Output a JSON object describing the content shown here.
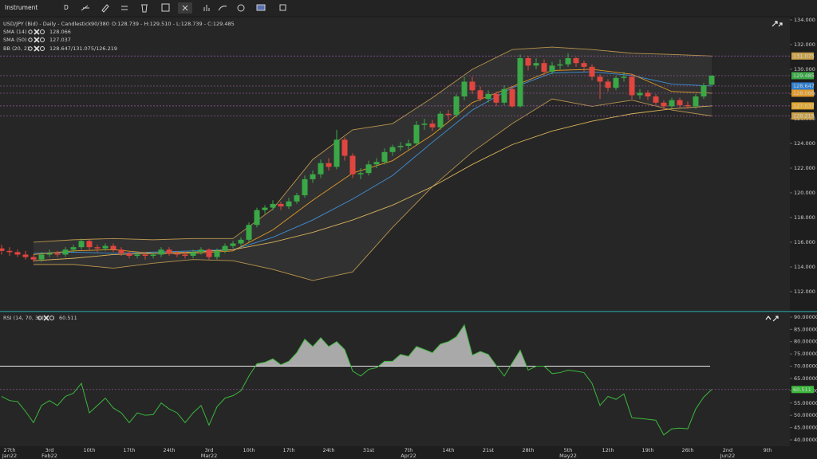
{
  "toolbar": {
    "instrument": "Instrument",
    "period": "D"
  },
  "chart_data": {
    "type": "candlestick",
    "title": "USD/JPY (Bid) - Daily - Candlestick",
    "counter": "90/380",
    "ohlc_text": "O:128.739 - H:129.510 - L:128.739 - C:129.485",
    "up_color": "#3aa846",
    "down_color": "#e0463e",
    "candles": [
      [
        115.5,
        115.8,
        115.0,
        115.3
      ],
      [
        115.3,
        115.6,
        114.9,
        115.2
      ],
      [
        115.2,
        115.4,
        114.8,
        115.0
      ],
      [
        115.0,
        115.3,
        114.6,
        114.8
      ],
      [
        114.8,
        115.0,
        114.4,
        114.6
      ],
      [
        114.6,
        115.2,
        114.4,
        115.0
      ],
      [
        115.0,
        115.4,
        114.8,
        115.1
      ],
      [
        115.1,
        115.3,
        114.8,
        115.0
      ],
      [
        115.0,
        115.6,
        114.8,
        115.4
      ],
      [
        115.4,
        115.8,
        115.2,
        115.6
      ],
      [
        115.6,
        116.3,
        115.4,
        116.1
      ],
      [
        116.1,
        116.2,
        115.4,
        115.6
      ],
      [
        115.6,
        115.8,
        115.2,
        115.5
      ],
      [
        115.5,
        115.9,
        115.3,
        115.7
      ],
      [
        115.7,
        115.9,
        115.2,
        115.4
      ],
      [
        115.4,
        115.6,
        114.9,
        115.1
      ],
      [
        115.1,
        115.3,
        114.7,
        114.9
      ],
      [
        114.9,
        115.2,
        114.7,
        115.0
      ],
      [
        115.0,
        115.2,
        114.6,
        114.9
      ],
      [
        114.9,
        115.2,
        114.7,
        115.0
      ],
      [
        115.0,
        115.6,
        114.8,
        115.4
      ],
      [
        115.4,
        115.6,
        114.9,
        115.1
      ],
      [
        115.1,
        115.3,
        114.8,
        115.0
      ],
      [
        115.0,
        115.2,
        114.7,
        114.9
      ],
      [
        114.9,
        115.4,
        114.7,
        115.2
      ],
      [
        115.2,
        115.6,
        115.0,
        115.4
      ],
      [
        115.4,
        115.5,
        114.6,
        114.8
      ],
      [
        114.8,
        115.5,
        114.6,
        115.3
      ],
      [
        115.3,
        115.9,
        115.1,
        115.7
      ],
      [
        115.7,
        116.1,
        115.5,
        115.9
      ],
      [
        115.9,
        116.4,
        115.7,
        116.2
      ],
      [
        116.2,
        117.6,
        116.0,
        117.4
      ],
      [
        117.4,
        118.8,
        117.2,
        118.6
      ],
      [
        118.6,
        119.0,
        118.3,
        118.8
      ],
      [
        118.8,
        119.4,
        118.6,
        119.1
      ],
      [
        119.1,
        119.3,
        118.6,
        118.9
      ],
      [
        118.9,
        119.6,
        118.7,
        119.3
      ],
      [
        119.3,
        120.0,
        119.1,
        119.8
      ],
      [
        119.8,
        121.4,
        119.6,
        121.1
      ],
      [
        121.1,
        121.8,
        120.8,
        121.5
      ],
      [
        121.5,
        122.7,
        121.2,
        122.4
      ],
      [
        122.4,
        122.8,
        121.8,
        122.1
      ],
      [
        122.1,
        125.1,
        121.9,
        124.3
      ],
      [
        124.3,
        124.5,
        122.6,
        123.0
      ],
      [
        123.0,
        123.2,
        121.2,
        121.5
      ],
      [
        121.5,
        122.0,
        121.1,
        121.6
      ],
      [
        121.6,
        122.6,
        121.4,
        122.3
      ],
      [
        122.3,
        122.8,
        122.0,
        122.5
      ],
      [
        122.5,
        123.6,
        122.3,
        123.3
      ],
      [
        123.3,
        123.9,
        123.0,
        123.7
      ],
      [
        123.7,
        124.1,
        123.4,
        123.8
      ],
      [
        123.8,
        124.3,
        123.5,
        124.0
      ],
      [
        124.0,
        125.8,
        123.8,
        125.5
      ],
      [
        125.5,
        126.0,
        125.1,
        125.6
      ],
      [
        125.6,
        125.9,
        125.0,
        125.3
      ],
      [
        125.3,
        126.6,
        125.1,
        126.4
      ],
      [
        126.4,
        126.7,
        125.9,
        126.3
      ],
      [
        126.3,
        128.0,
        126.1,
        127.8
      ],
      [
        127.8,
        129.4,
        127.5,
        129.0
      ],
      [
        129.0,
        129.4,
        128.0,
        128.3
      ],
      [
        128.3,
        128.6,
        127.4,
        127.6
      ],
      [
        127.6,
        128.3,
        127.3,
        128.0
      ],
      [
        128.0,
        128.2,
        127.0,
        127.3
      ],
      [
        127.3,
        128.7,
        127.1,
        128.4
      ],
      [
        128.4,
        128.6,
        126.9,
        127.0
      ],
      [
        127.0,
        131.2,
        126.9,
        130.9
      ],
      [
        130.9,
        131.1,
        129.9,
        130.3
      ],
      [
        130.3,
        130.9,
        130.0,
        130.5
      ],
      [
        130.5,
        130.8,
        129.5,
        129.8
      ],
      [
        129.8,
        130.6,
        129.6,
        130.3
      ],
      [
        130.3,
        130.8,
        130.0,
        130.4
      ],
      [
        130.4,
        131.3,
        130.2,
        130.9
      ],
      [
        130.9,
        131.0,
        130.2,
        130.5
      ],
      [
        130.5,
        130.7,
        129.8,
        130.2
      ],
      [
        130.2,
        130.4,
        129.1,
        129.4
      ],
      [
        129.4,
        129.6,
        127.6,
        129.0
      ],
      [
        129.0,
        129.2,
        128.2,
        128.5
      ],
      [
        128.5,
        129.5,
        128.3,
        129.3
      ],
      [
        129.3,
        129.8,
        129.0,
        129.4
      ],
      [
        129.4,
        129.6,
        127.6,
        127.9
      ],
      [
        127.9,
        128.4,
        127.6,
        128.1
      ],
      [
        128.1,
        128.3,
        127.5,
        127.8
      ],
      [
        127.8,
        128.0,
        127.0,
        127.3
      ],
      [
        127.3,
        127.5,
        126.7,
        127.0
      ],
      [
        127.0,
        127.7,
        126.8,
        127.5
      ],
      [
        127.5,
        127.7,
        126.9,
        127.1
      ],
      [
        127.1,
        127.4,
        126.8,
        127.0
      ],
      [
        127.0,
        128.0,
        126.8,
        127.8
      ],
      [
        127.8,
        128.9,
        127.6,
        128.7
      ],
      [
        128.739,
        129.51,
        128.739,
        129.485
      ]
    ],
    "ylim": [
      110.45,
      134.19
    ],
    "yticks": [
      {
        "value": 112,
        "label": "112.000"
      },
      {
        "value": 114,
        "label": "114.000"
      },
      {
        "value": 116,
        "label": "116.000"
      },
      {
        "value": 118,
        "label": "118.000"
      },
      {
        "value": 120,
        "label": "120.000"
      },
      {
        "value": 122,
        "label": "122.000"
      },
      {
        "value": 124,
        "label": "124.000"
      },
      {
        "value": 126,
        "label": "126.000"
      },
      {
        "value": 128,
        "label": "128.000"
      },
      {
        "value": 130,
        "label": "130.000"
      },
      {
        "value": 132,
        "label": "132.000"
      },
      {
        "value": 134,
        "label": "134.000"
      }
    ],
    "indicators": [
      {
        "label": "SMA (14)",
        "value_text": "128.066",
        "color": "#e09a2a",
        "values": [
          115.0,
          115.3,
          115.4,
          115.1,
          115.1,
          115.3,
          117.0,
          119.4,
          121.6,
          122.6,
          124.7,
          127.3,
          128.6,
          129.9,
          130.0,
          129.6,
          128.2,
          128.066
        ]
      },
      {
        "label": "SMA (50)",
        "value_text": "127.037",
        "color": "#d8b25a",
        "values": [
          114.5,
          114.7,
          115.0,
          115.1,
          115.2,
          115.4,
          116.0,
          116.8,
          117.8,
          119.0,
          120.5,
          122.3,
          123.9,
          125.0,
          125.8,
          126.4,
          126.8,
          127.037
        ]
      },
      {
        "label": "BB (20, 2)",
        "value_text": "128.647/131.075/126.219",
        "color": "#b8944e",
        "middle_color": "#3f8fd8",
        "middle": [
          115.1,
          115.2,
          115.1,
          115.2,
          115.3,
          115.4,
          116.4,
          117.8,
          119.5,
          121.4,
          124.1,
          126.7,
          128.5,
          129.7,
          129.8,
          129.5,
          128.8,
          128.647
        ],
        "upper": [
          116.0,
          116.2,
          116.3,
          116.2,
          116.3,
          116.3,
          118.7,
          122.7,
          125.1,
          125.6,
          127.7,
          130.0,
          131.6,
          131.8,
          131.6,
          131.3,
          131.2,
          131.075
        ],
        "lower": [
          114.2,
          114.2,
          113.9,
          114.3,
          114.6,
          114.5,
          113.8,
          112.9,
          113.6,
          117.2,
          120.5,
          123.3,
          125.6,
          127.6,
          127.0,
          127.5,
          126.7,
          126.219
        ]
      }
    ],
    "price_tags": [
      {
        "value": 131.075,
        "color": "#c9a04a"
      },
      {
        "value": 129.485,
        "color": "#3aa846"
      },
      {
        "value": 128.647,
        "color": "#2f7fd0"
      },
      {
        "value": 128.066,
        "color": "#e09a2a"
      },
      {
        "value": 127.037,
        "color": "#e0a630"
      },
      {
        "value": 126.219,
        "color": "#c9a04a"
      }
    ],
    "dates": [
      {
        "day": "27th",
        "month": "Jan22"
      },
      {
        "day": "3rd",
        "month": "Feb22"
      },
      {
        "day": "10th"
      },
      {
        "day": "17th"
      },
      {
        "day": "24th"
      },
      {
        "day": "3rd",
        "month": "Mar22"
      },
      {
        "day": "10th"
      },
      {
        "day": "17th"
      },
      {
        "day": "24th"
      },
      {
        "day": "31st"
      },
      {
        "day": "7th",
        "month": "Apr22"
      },
      {
        "day": "14th"
      },
      {
        "day": "21st"
      },
      {
        "day": "28th"
      },
      {
        "day": "5th",
        "month": "May22"
      },
      {
        "day": "12th"
      },
      {
        "day": "19th"
      },
      {
        "day": "26th"
      },
      {
        "day": "2nd",
        "month": "Jun22"
      },
      {
        "day": "9th"
      }
    ],
    "rsi": {
      "label": "RSI (14, 70, 30)",
      "value_text": "60.511",
      "color": "#3cb83c",
      "level": 70,
      "tag": 60.511,
      "values": [
        57.7,
        56,
        55.6,
        51.6,
        47,
        54,
        56,
        54,
        57.7,
        59,
        63,
        51,
        54,
        57,
        53,
        51,
        47,
        51,
        50,
        50.3,
        55,
        52.6,
        51,
        47,
        51,
        54,
        46,
        53.5,
        57,
        58,
        60,
        66,
        71,
        71.6,
        73,
        70.6,
        72,
        75.5,
        81,
        78,
        81.6,
        78,
        80,
        76.8,
        68,
        66,
        68.7,
        69.4,
        72,
        72,
        74.8,
        74,
        78,
        76.8,
        75.5,
        79,
        80,
        82,
        86.8,
        74.5,
        76,
        74.8,
        70.3,
        66,
        71.3,
        76.5,
        68.4,
        70,
        70,
        67,
        67.4,
        68.4,
        68,
        67.4,
        63,
        54,
        57.7,
        56.5,
        58.7,
        49,
        48.7,
        48.4,
        48,
        42,
        44.5,
        44.8,
        44.5,
        52.6,
        57.4,
        60.511
      ],
      "ylim": [
        37.4,
        91.6
      ],
      "yticks": [
        {
          "value": 40,
          "label": "40.00000"
        },
        {
          "value": 45,
          "label": "45.00000"
        },
        {
          "value": 50,
          "label": "50.00000"
        },
        {
          "value": 55,
          "label": "55.00000"
        },
        {
          "value": 60,
          "label": "60.00000"
        },
        {
          "value": 65,
          "label": "65.00000"
        },
        {
          "value": 70,
          "label": "70.00000"
        },
        {
          "value": 75,
          "label": "75.00000"
        },
        {
          "value": 80,
          "label": "80.00000"
        },
        {
          "value": 85,
          "label": "85.00000"
        },
        {
          "value": 90,
          "label": "90.00000"
        }
      ]
    }
  }
}
